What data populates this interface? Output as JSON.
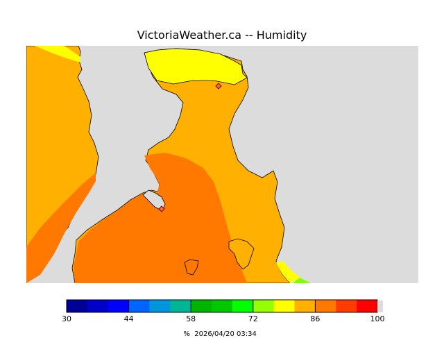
{
  "header": {
    "title": "VictoriaWeather.ca -- Humidity"
  },
  "map": {
    "background_color": "#DCDCDC",
    "regions": [
      {
        "name": "yellow-zone",
        "color": "#FFFF00"
      },
      {
        "name": "light-orange-zone",
        "color": "#FFB000"
      },
      {
        "name": "dark-orange-zone",
        "color": "#FF7800"
      },
      {
        "name": "green-patch",
        "color": "#7FFF00"
      }
    ],
    "stations": [
      {
        "name": "station-north",
        "marker_color": "#E8761E"
      },
      {
        "name": "station-victoria",
        "marker_color": "#E8761E"
      }
    ]
  },
  "legend": {
    "colors": [
      "#000096",
      "#0000C8",
      "#0000FF",
      "#0064FF",
      "#0096DC",
      "#00B496",
      "#00B400",
      "#00C800",
      "#00FF00",
      "#96FF00",
      "#FFFF00",
      "#FFB000",
      "#FF7800",
      "#FF3C00",
      "#FF0000"
    ],
    "tick_labels": [
      "30",
      "44",
      "58",
      "72",
      "86",
      "100"
    ],
    "unit": "%",
    "timestamp": "2026/04/20 03:34"
  }
}
